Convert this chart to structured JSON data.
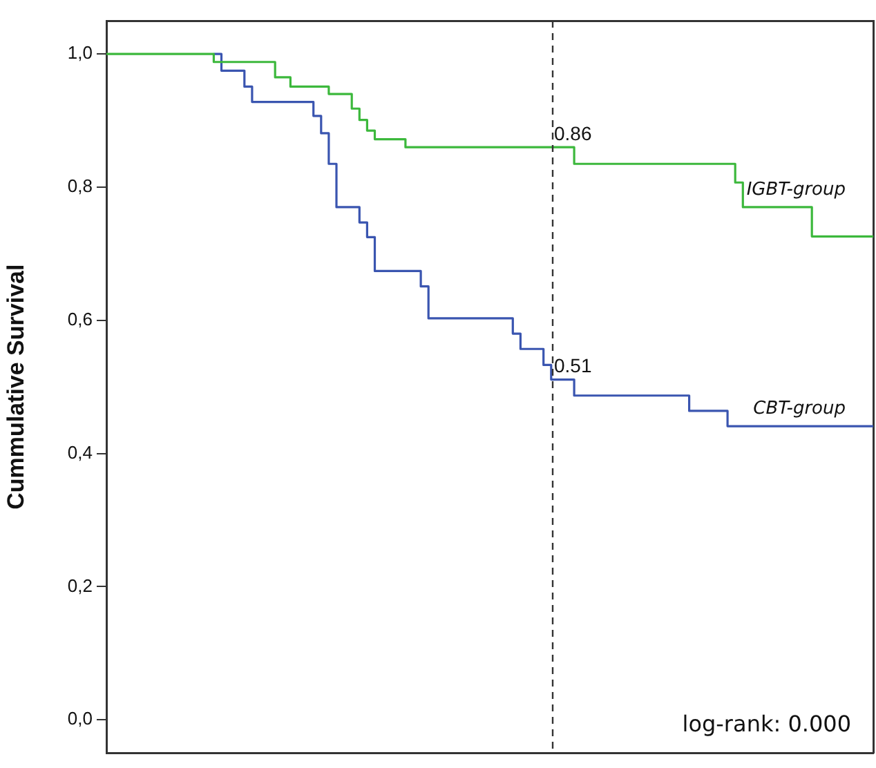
{
  "chart_data": {
    "type": "step",
    "ylabel": "Cummulative Survival",
    "ylim": [
      -0.05,
      1.05
    ],
    "categories": [
      null,
      null,
      null,
      null,
      null,
      null,
      null,
      null,
      null,
      null,
      null,
      null,
      null,
      null,
      null,
      null,
      null,
      null,
      null,
      null,
      null,
      null,
      null,
      null,
      null,
      null,
      null,
      null,
      null,
      null,
      null,
      null,
      null,
      null,
      null,
      null,
      null,
      null,
      null,
      null,
      null,
      null,
      null,
      null,
      null,
      null,
      null,
      null,
      null,
      null,
      null,
      null,
      null,
      null,
      null,
      null,
      null,
      null,
      null,
      null,
      null,
      null,
      null,
      null,
      null,
      null,
      null,
      null,
      null,
      null,
      null,
      null,
      null,
      null,
      null,
      null,
      null,
      null,
      null,
      null,
      null,
      null,
      null,
      null,
      null,
      null,
      null,
      null,
      null,
      null,
      null,
      null,
      null,
      null,
      null,
      null,
      null,
      null,
      null,
      null,
      null
    ],
    "yticks": [
      {
        "value": 0,
        "label": "0,0"
      },
      {
        "value": 0.2,
        "label": "0,2"
      },
      {
        "value": 0.4,
        "label": "0,4"
      },
      {
        "value": 0.6,
        "label": "0,6"
      },
      {
        "value": 0.8,
        "label": "0,8"
      },
      {
        "value": 1,
        "label": "1,0"
      }
    ],
    "tick_labels": "y",
    "legend": false,
    "series": [
      {
        "name": "IGBT-group",
        "color": "#3cb83c",
        "values": [
          1.0,
          1.0,
          1.0,
          1.0,
          1.0,
          1.0,
          1.0,
          1.0,
          1.0,
          1.0,
          1.0,
          1.0,
          1.0,
          1.0,
          0.988,
          0.988,
          0.988,
          0.988,
          0.988,
          0.988,
          0.988,
          0.988,
          0.965,
          0.965,
          0.951,
          0.951,
          0.951,
          0.951,
          0.951,
          0.94,
          0.94,
          0.94,
          0.918,
          0.901,
          0.885,
          0.872,
          0.872,
          0.872,
          0.872,
          0.86,
          0.86,
          0.86,
          0.86,
          0.86,
          0.86,
          0.86,
          0.86,
          0.86,
          0.86,
          0.86,
          0.86,
          0.86,
          0.86,
          0.86,
          0.86,
          0.86,
          0.86,
          0.86,
          0.86,
          0.86,
          0.86,
          0.835,
          0.835,
          0.835,
          0.835,
          0.835,
          0.835,
          0.835,
          0.835,
          0.835,
          0.835,
          0.835,
          0.835,
          0.835,
          0.835,
          0.835,
          0.835,
          0.835,
          0.835,
          0.835,
          0.835,
          0.835,
          0.807,
          0.77,
          0.77,
          0.77,
          0.77,
          0.77,
          0.77,
          0.77,
          0.77,
          0.77,
          0.726,
          0.726,
          0.726,
          0.726,
          0.726,
          0.726,
          0.726,
          0.726,
          0.726
        ]
      },
      {
        "name": "CBT-group",
        "color": "#3a55b0",
        "values": [
          null,
          null,
          null,
          null,
          null,
          null,
          null,
          null,
          null,
          null,
          null,
          null,
          null,
          null,
          1.0,
          0.975,
          0.975,
          0.975,
          0.951,
          0.928,
          0.928,
          0.928,
          0.928,
          0.928,
          0.928,
          0.928,
          0.928,
          0.907,
          0.881,
          0.835,
          0.77,
          0.77,
          0.77,
          0.747,
          0.725,
          0.674,
          0.674,
          0.674,
          0.674,
          0.674,
          0.674,
          0.651,
          0.603,
          0.603,
          0.603,
          0.603,
          0.603,
          0.603,
          0.603,
          0.603,
          0.603,
          0.603,
          0.603,
          0.58,
          0.557,
          0.557,
          0.557,
          0.533,
          0.511,
          0.511,
          0.511,
          0.487,
          0.487,
          0.487,
          0.487,
          0.487,
          0.487,
          0.487,
          0.487,
          0.487,
          0.487,
          0.487,
          0.487,
          0.487,
          0.487,
          0.487,
          0.464,
          0.464,
          0.464,
          0.464,
          0.464,
          0.441,
          0.441,
          0.441,
          0.441,
          0.441,
          0.441,
          0.441,
          0.441,
          0.441,
          0.441,
          0.441,
          0.441,
          0.441,
          0.441,
          0.441,
          0.441,
          0.441,
          0.441,
          0.441,
          0.441
        ]
      }
    ],
    "annotations": [
      {
        "text": "0.86",
        "y": 0.86
      },
      {
        "text": "0.51",
        "y": 0.511
      },
      "log-rank: 0.000"
    ]
  }
}
